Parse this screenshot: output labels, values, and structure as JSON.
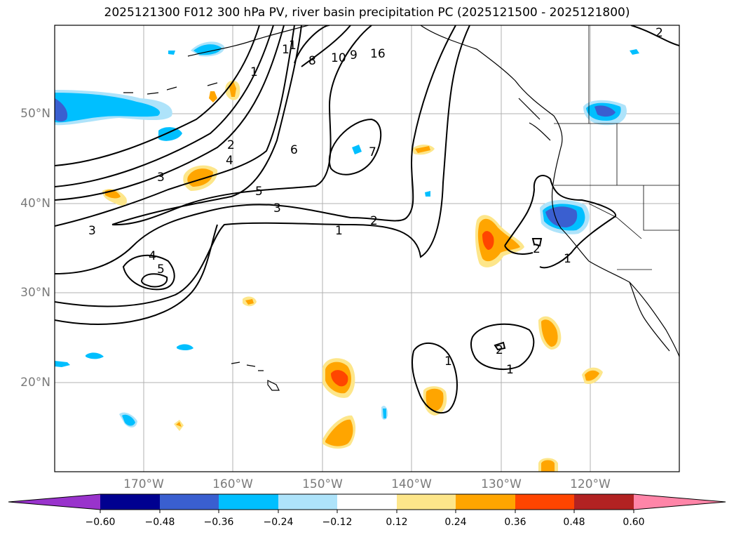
{
  "title": "2025121300 F012 300 hPa PV, river basin precipitation PC (2025121500 - 2025121800)",
  "lat_labels": [
    "50°N",
    "40°N",
    "30°N",
    "20°N"
  ],
  "lon_labels": [
    "170°W",
    "160°W",
    "150°W",
    "140°W",
    "130°W",
    "120°W"
  ],
  "contour_labels": [
    "1",
    "2",
    "3",
    "4",
    "5",
    "6",
    "7",
    "8",
    "10",
    "9",
    "16",
    "1",
    "3",
    "2",
    "4",
    "5",
    "1",
    "2",
    "3",
    "1",
    "1",
    "2",
    "2",
    "1",
    "1"
  ],
  "colorbar": {
    "ticks": [
      "−0.60",
      "−0.48",
      "−0.36",
      "−0.24",
      "−0.12",
      "0.12",
      "0.24",
      "0.36",
      "0.48",
      "0.60"
    ],
    "colors": [
      "#9933cc",
      "#000090",
      "#3a5fd0",
      "#00bfff",
      "#aee3fa",
      "#ffffff",
      "#fde68a",
      "#ffa500",
      "#ff4500",
      "#b22222",
      "#ff85a8"
    ]
  }
}
